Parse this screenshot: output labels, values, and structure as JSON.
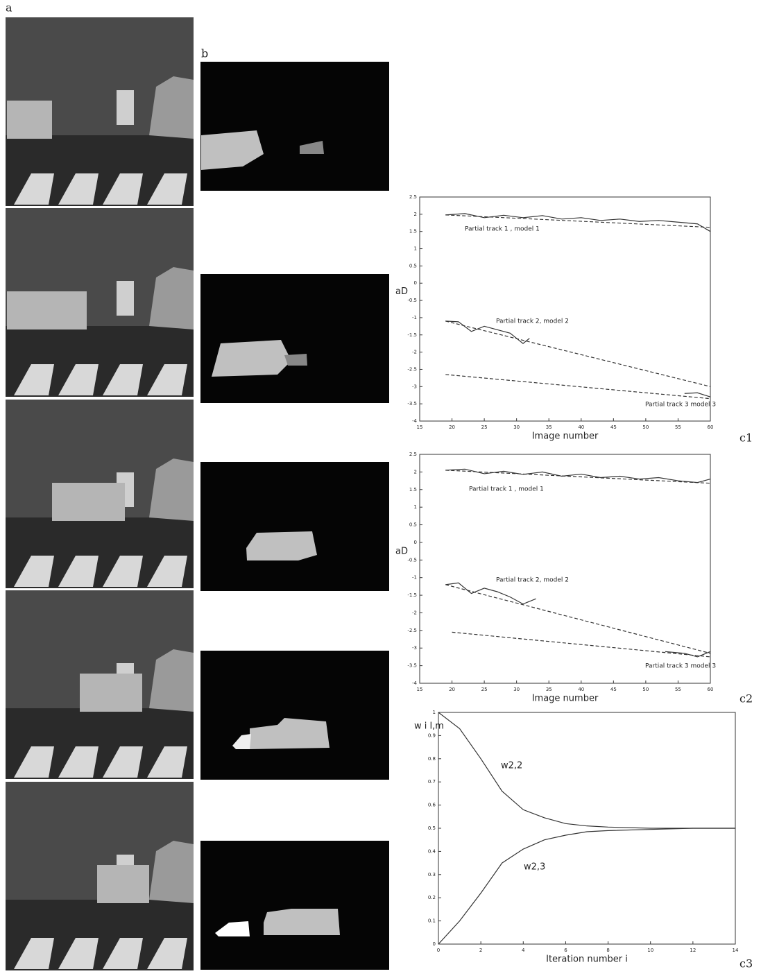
{
  "panel_labels": {
    "a": "a",
    "b": "b",
    "c1": "c1",
    "c2": "c2",
    "c3": "c3"
  },
  "chart_data": [
    {
      "type": "line",
      "xlabel": "Image number",
      "ylabel": "aD",
      "xlim": [
        15,
        60
      ],
      "xticks": [
        15,
        20,
        25,
        30,
        35,
        40,
        45,
        50,
        55,
        60
      ],
      "ylim": [
        -4,
        2.5
      ],
      "yticks": [
        -4,
        -3.5,
        -3,
        -2.5,
        -2,
        -1.5,
        -1,
        -0.5,
        0,
        0.5,
        1,
        1.5,
        2,
        2.5
      ],
      "annotations": [
        "Partial track 1 , model 1",
        "Partial track 2, model 2",
        "Partial track 3 model 3"
      ],
      "series": [
        {
          "color": "#333333",
          "dash": false,
          "x": [
            19,
            22,
            25,
            28,
            31,
            34,
            37,
            40,
            43,
            46,
            49,
            52,
            55,
            58,
            60
          ],
          "values": [
            1.98,
            2.02,
            1.9,
            1.97,
            1.9,
            1.96,
            1.86,
            1.9,
            1.82,
            1.86,
            1.79,
            1.82,
            1.77,
            1.72,
            1.5
          ]
        },
        {
          "color": "#333333",
          "dash": true,
          "x": [
            19,
            60
          ],
          "values": [
            1.98,
            1.62
          ]
        },
        {
          "color": "#333333",
          "dash": false,
          "x": [
            19,
            21,
            23,
            25,
            27,
            29,
            31,
            32
          ],
          "values": [
            -1.1,
            -1.12,
            -1.4,
            -1.25,
            -1.35,
            -1.45,
            -1.75,
            -1.6
          ]
        },
        {
          "color": "#333333",
          "dash": true,
          "x": [
            19,
            60
          ],
          "values": [
            -1.1,
            -3.0
          ]
        },
        {
          "color": "#333333",
          "dash": false,
          "x": [
            56,
            58,
            60
          ],
          "values": [
            -3.2,
            -3.18,
            -3.3
          ]
        },
        {
          "color": "#333333",
          "dash": true,
          "x": [
            19,
            60
          ],
          "values": [
            -2.65,
            -3.35
          ]
        }
      ]
    },
    {
      "type": "line",
      "xlabel": "Image number",
      "ylabel": "aD",
      "xlim": [
        15,
        60
      ],
      "xticks": [
        15,
        20,
        25,
        30,
        35,
        40,
        45,
        50,
        55,
        60
      ],
      "ylim": [
        -4,
        2.5
      ],
      "yticks": [
        -4,
        -3.5,
        -3,
        -2.5,
        -2,
        -1.5,
        -1,
        -0.5,
        0,
        0.5,
        1,
        1.5,
        2,
        2.5
      ],
      "annotations": [
        "Partial track 1 , model 1",
        "Partial track 2, model 2",
        "Partial track 3 model 3"
      ],
      "series": [
        {
          "color": "#333333",
          "dash": false,
          "x": [
            19,
            22,
            25,
            28,
            31,
            34,
            37,
            40,
            43,
            46,
            49,
            52,
            55,
            58,
            60
          ],
          "values": [
            2.05,
            2.08,
            1.95,
            2.02,
            1.93,
            2.0,
            1.88,
            1.94,
            1.84,
            1.88,
            1.8,
            1.84,
            1.75,
            1.7,
            1.8
          ]
        },
        {
          "color": "#333333",
          "dash": true,
          "x": [
            19,
            60
          ],
          "values": [
            2.05,
            1.68
          ]
        },
        {
          "color": "#333333",
          "dash": false,
          "x": [
            19,
            21,
            23,
            25,
            27,
            29,
            31,
            33
          ],
          "values": [
            -1.2,
            -1.15,
            -1.45,
            -1.3,
            -1.4,
            -1.55,
            -1.75,
            -1.6
          ]
        },
        {
          "color": "#333333",
          "dash": true,
          "x": [
            19,
            60
          ],
          "values": [
            -1.2,
            -3.15
          ]
        },
        {
          "color": "#333333",
          "dash": false,
          "x": [
            53,
            56,
            58,
            60
          ],
          "values": [
            -3.1,
            -3.15,
            -3.25,
            -3.1
          ]
        },
        {
          "color": "#333333",
          "dash": true,
          "x": [
            20,
            60
          ],
          "values": [
            -2.55,
            -3.25
          ]
        }
      ]
    },
    {
      "type": "line",
      "xlabel": "Iteration number i",
      "ylabel": "w i l,m",
      "xlim": [
        0,
        14
      ],
      "xticks": [
        0,
        2,
        4,
        6,
        8,
        10,
        12,
        14
      ],
      "ylim": [
        0,
        1
      ],
      "yticks": [
        0,
        0.1,
        0.2,
        0.3,
        0.4,
        0.5,
        0.6,
        0.7,
        0.8,
        0.9,
        1
      ],
      "annotations": [
        "w2,2",
        "w2,3"
      ],
      "series": [
        {
          "color": "#333333",
          "dash": false,
          "x": [
            0,
            1,
            2,
            3,
            4,
            5,
            6,
            7,
            8,
            10,
            12,
            14
          ],
          "values": [
            1.0,
            0.93,
            0.8,
            0.66,
            0.58,
            0.545,
            0.52,
            0.51,
            0.505,
            0.5,
            0.5,
            0.5
          ]
        },
        {
          "color": "#333333",
          "dash": false,
          "x": [
            0,
            1,
            2,
            3,
            4,
            5,
            6,
            7,
            8,
            10,
            12,
            14
          ],
          "values": [
            0.0,
            0.1,
            0.22,
            0.35,
            0.41,
            0.45,
            0.47,
            0.485,
            0.49,
            0.495,
            0.5,
            0.5
          ]
        }
      ]
    }
  ]
}
